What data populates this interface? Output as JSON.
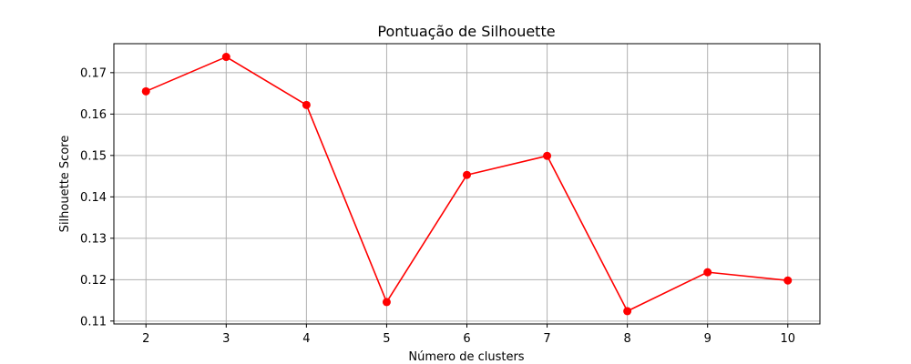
{
  "chart_data": {
    "type": "line",
    "title": "Pontuação de Silhouette",
    "xlabel": "Número de clusters",
    "ylabel": "Silhouette Score",
    "x": [
      2,
      3,
      4,
      5,
      6,
      7,
      8,
      9,
      10
    ],
    "series": [
      {
        "values": [
          0.1655,
          0.1738,
          0.1622,
          0.1146,
          0.1453,
          0.1499,
          0.1124,
          0.1218,
          0.1198
        ],
        "color": "#ff0000",
        "marker": "circle"
      }
    ],
    "xlim": [
      1.6,
      10.4
    ],
    "ylim": [
      0.1093,
      0.177
    ],
    "xticks": [
      2,
      3,
      4,
      5,
      6,
      7,
      8,
      9,
      10
    ],
    "yticks": [
      0.11,
      0.12,
      0.13,
      0.14,
      0.15,
      0.16,
      0.17
    ],
    "ytick_labels": [
      "0.11",
      "0.12",
      "0.13",
      "0.14",
      "0.15",
      "0.16",
      "0.17"
    ],
    "grid": true,
    "grid_color": "#b0b0b0"
  }
}
